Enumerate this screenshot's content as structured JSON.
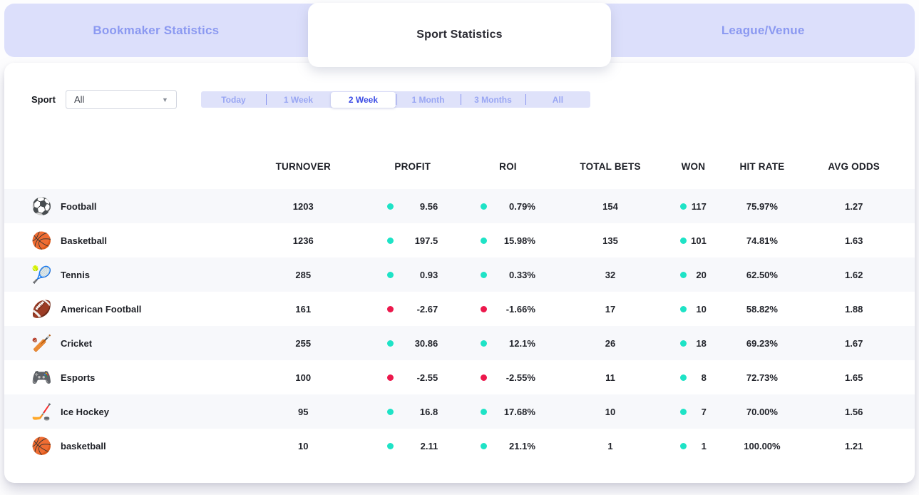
{
  "tabs": [
    {
      "label": "Bookmaker Statistics",
      "active": false
    },
    {
      "label": "Sport Statistics",
      "active": true
    },
    {
      "label": "League/Venue",
      "active": false
    }
  ],
  "filters": {
    "sport_label": "Sport",
    "sport_value": "All",
    "periods": [
      "Today",
      "1 Week",
      "2 Week",
      "1 Month",
      "3 Months",
      "All"
    ],
    "active_period_index": 2,
    "active_period": "2 Week"
  },
  "table": {
    "columns": [
      "TURNOVER",
      "PROFIT",
      "ROI",
      "TOTAL BETS",
      "WON",
      "HIT RATE",
      "AVG ODDS"
    ],
    "rows": [
      {
        "sport": "Football",
        "icon": "⚽",
        "icon_name": "football-icon",
        "turnover": "1203",
        "profit": "9.56",
        "roi": "0.79%",
        "profit_positive": true,
        "total_bets": "154",
        "won": "117",
        "hit_rate": "75.97%",
        "avg_odds": "1.27"
      },
      {
        "sport": "Basketball",
        "icon": "🏀",
        "icon_name": "basketball-icon",
        "turnover": "1236",
        "profit": "197.5",
        "roi": "15.98%",
        "profit_positive": true,
        "total_bets": "135",
        "won": "101",
        "hit_rate": "74.81%",
        "avg_odds": "1.63"
      },
      {
        "sport": "Tennis",
        "icon": "🎾",
        "icon_name": "tennis-icon",
        "turnover": "285",
        "profit": "0.93",
        "roi": "0.33%",
        "profit_positive": true,
        "total_bets": "32",
        "won": "20",
        "hit_rate": "62.50%",
        "avg_odds": "1.62"
      },
      {
        "sport": "American Football",
        "icon": "🏈",
        "icon_name": "american-football-icon",
        "turnover": "161",
        "profit": "-2.67",
        "roi": "-1.66%",
        "profit_positive": false,
        "total_bets": "17",
        "won": "10",
        "hit_rate": "58.82%",
        "avg_odds": "1.88"
      },
      {
        "sport": "Cricket",
        "icon": "🏏",
        "icon_name": "cricket-icon",
        "turnover": "255",
        "profit": "30.86",
        "roi": "12.1%",
        "profit_positive": true,
        "total_bets": "26",
        "won": "18",
        "hit_rate": "69.23%",
        "avg_odds": "1.67"
      },
      {
        "sport": "Esports",
        "icon": "🎮",
        "icon_name": "esports-icon",
        "turnover": "100",
        "profit": "-2.55",
        "roi": "-2.55%",
        "profit_positive": false,
        "total_bets": "11",
        "won": "8",
        "hit_rate": "72.73%",
        "avg_odds": "1.65"
      },
      {
        "sport": "Ice Hockey",
        "icon": "🏒",
        "icon_name": "ice-hockey-icon",
        "turnover": "95",
        "profit": "16.8",
        "roi": "17.68%",
        "profit_positive": true,
        "total_bets": "10",
        "won": "7",
        "hit_rate": "70.00%",
        "avg_odds": "1.56"
      },
      {
        "sport": "basketball",
        "icon": "🏀",
        "icon_name": "basketball-icon",
        "turnover": "10",
        "profit": "2.11",
        "roi": "21.1%",
        "profit_positive": true,
        "total_bets": "1",
        "won": "1",
        "hit_rate": "100.00%",
        "avg_odds": "1.21"
      }
    ]
  },
  "colors": {
    "positive": "#1ee3c6",
    "negative": "#ec184c",
    "accent": "#3a4ae4"
  }
}
